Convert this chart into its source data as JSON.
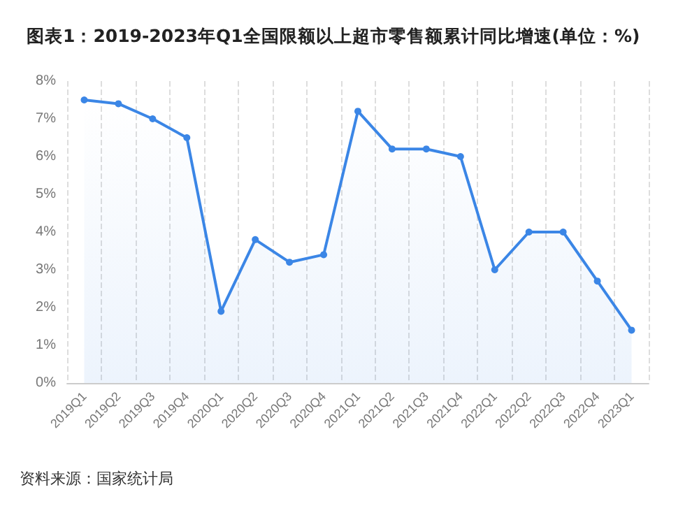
{
  "chart_data": {
    "type": "area",
    "title": "图表1：2019-2023年Q1全国限额以上超市零售额累计同比增速(单位：%)",
    "categories": [
      "2019Q1",
      "2019Q2",
      "2019Q3",
      "2019Q4",
      "2020Q1",
      "2020Q2",
      "2020Q3",
      "2020Q4",
      "2021Q1",
      "2021Q2",
      "2021Q3",
      "2021Q4",
      "2022Q1",
      "2022Q2",
      "2022Q3",
      "2022Q4",
      "2023Q1"
    ],
    "series": [
      {
        "color": "#3b86e6",
        "values": [
          7.5,
          7.4,
          7.0,
          6.5,
          1.9,
          3.8,
          3.2,
          3.4,
          7.2,
          6.2,
          6.2,
          6.0,
          3.0,
          4.0,
          4.0,
          2.7,
          1.4
        ]
      }
    ],
    "ylim": [
      0,
      8
    ],
    "yticks": [
      {
        "value": 0,
        "label": "0%"
      },
      {
        "value": 1,
        "label": "1%"
      },
      {
        "value": 2,
        "label": "2%"
      },
      {
        "value": 3,
        "label": "3%"
      },
      {
        "value": 4,
        "label": "4%"
      },
      {
        "value": 5,
        "label": "5%"
      },
      {
        "value": 6,
        "label": "6%"
      },
      {
        "value": 7,
        "label": "7%"
      },
      {
        "value": 8,
        "label": "8%"
      }
    ],
    "grid": "x",
    "marker": "circle",
    "line_style": "solid",
    "annotations": [
      "资料来源：国家统计局"
    ]
  }
}
